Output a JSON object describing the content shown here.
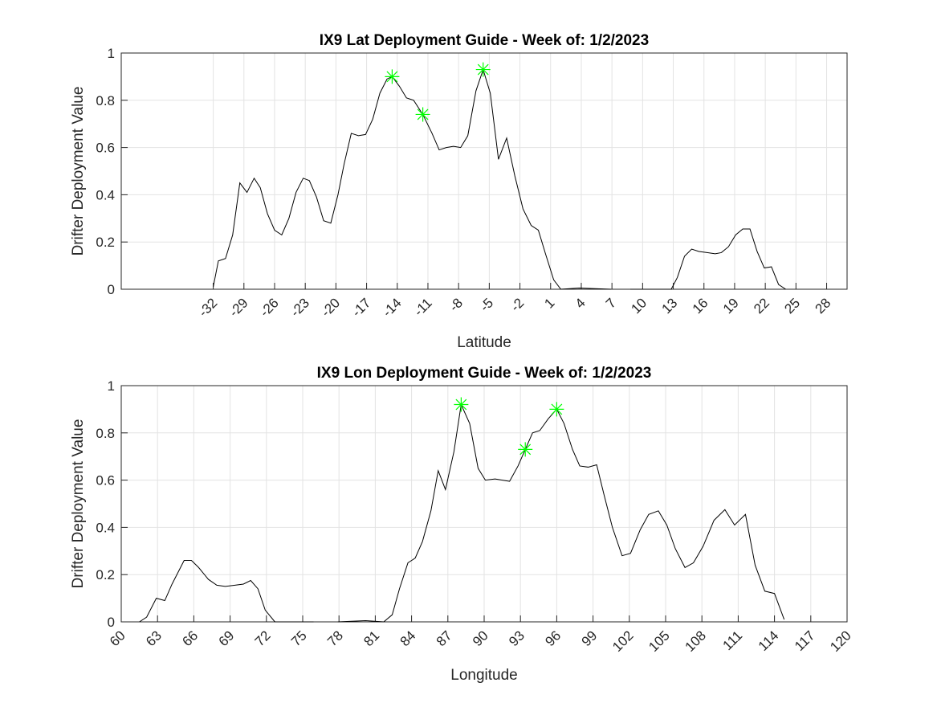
{
  "chart_data": [
    {
      "type": "line",
      "title": "IX9 Lat Deployment Guide - Week of: 1/2/2023",
      "xlabel": "Latitude",
      "ylabel": "Drifter Deployment Value",
      "xlim": [
        -41,
        30
      ],
      "xticks": [
        -32,
        -29,
        -26,
        -23,
        -20,
        -17,
        -14,
        -11,
        -8,
        -5,
        -2,
        1,
        4,
        7,
        10,
        13,
        16,
        19,
        22,
        25,
        28
      ],
      "ylim": [
        0,
        1
      ],
      "yticks": [
        0,
        0.2,
        0.4,
        0.6,
        0.8,
        1
      ],
      "grid": true,
      "color": "#000000",
      "x": [
        -32.0,
        -31.5,
        -30.8,
        -30.1,
        -29.4,
        -28.7,
        -28.0,
        -27.4,
        -26.7,
        -26.0,
        -25.3,
        -24.6,
        -23.9,
        -23.2,
        -22.6,
        -21.9,
        -21.2,
        -20.5,
        -19.8,
        -19.2,
        -18.5,
        -17.8,
        -17.1,
        -16.4,
        -15.7,
        -15.0,
        -14.5,
        -13.8,
        -13.1,
        -12.4,
        -11.5,
        -10.6,
        -9.9,
        -9.2,
        -8.5,
        -7.8,
        -7.1,
        -6.3,
        -5.6,
        -4.9,
        -4.1,
        -3.3,
        -2.5,
        -1.7,
        -0.9,
        -0.2,
        0.5,
        1.3,
        2.0,
        3.8,
        6.9,
        7.8,
        8.8,
        12.8,
        13.4,
        14.1,
        14.8,
        15.5,
        16.3,
        17.1,
        17.7,
        18.4,
        19.1,
        19.8,
        20.5,
        21.2,
        21.9,
        22.6,
        23.3,
        24.0
      ],
      "values": [
        0.01,
        0.12,
        0.13,
        0.23,
        0.45,
        0.41,
        0.47,
        0.43,
        0.32,
        0.25,
        0.23,
        0.3,
        0.41,
        0.47,
        0.46,
        0.39,
        0.29,
        0.28,
        0.4,
        0.53,
        0.66,
        0.65,
        0.655,
        0.72,
        0.83,
        0.89,
        0.9,
        0.86,
        0.81,
        0.8,
        0.74,
        0.66,
        0.59,
        0.6,
        0.605,
        0.6,
        0.65,
        0.84,
        0.93,
        0.83,
        0.55,
        0.64,
        0.48,
        0.34,
        0.27,
        0.25,
        0.15,
        0.04,
        0.0,
        0.005,
        0.0,
        null,
        0.0,
        0.0,
        0.05,
        0.14,
        0.17,
        0.16,
        0.155,
        0.15,
        0.155,
        0.18,
        0.23,
        0.255,
        0.255,
        0.16,
        0.09,
        0.095,
        0.02,
        0.0
      ],
      "markers": {
        "color": "#00ff00",
        "x": [
          -14.5,
          -11.5,
          -5.6
        ],
        "values": [
          0.9,
          0.74,
          0.93
        ]
      }
    },
    {
      "type": "line",
      "title": "IX9 Lon Deployment Guide - Week of: 1/2/2023",
      "xlabel": "Longitude",
      "ylabel": "Drifter Deployment Value",
      "xlim": [
        60,
        120
      ],
      "xticks": [
        60,
        63,
        66,
        69,
        72,
        75,
        78,
        81,
        84,
        87,
        90,
        93,
        96,
        99,
        102,
        105,
        108,
        111,
        114,
        117,
        120
      ],
      "ylim": [
        0,
        1
      ],
      "yticks": [
        0,
        0.2,
        0.4,
        0.6,
        0.8,
        1
      ],
      "grid": true,
      "color": "#000000",
      "x": [
        61.5,
        62.1,
        62.9,
        63.6,
        64.2,
        65.2,
        65.8,
        66.4,
        67.2,
        67.9,
        68.6,
        69.4,
        70.1,
        70.7,
        71.3,
        71.9,
        72.7,
        75.9,
        77.0,
        77.9,
        80.2,
        81.7,
        82.4,
        83.0,
        83.7,
        84.3,
        84.9,
        85.6,
        86.2,
        86.8,
        87.5,
        88.1,
        88.8,
        89.5,
        90.1,
        90.9,
        91.5,
        92.1,
        92.8,
        93.4,
        94.0,
        94.6,
        95.3,
        96.0,
        96.6,
        97.3,
        97.9,
        98.6,
        99.3,
        99.9,
        100.6,
        101.4,
        102.1,
        102.9,
        103.6,
        104.4,
        105.1,
        105.8,
        106.6,
        107.3,
        108.1,
        109.0,
        109.9,
        110.7,
        111.6,
        112.4,
        113.2,
        114.0,
        114.8
      ],
      "values": [
        0.0,
        0.02,
        0.1,
        0.09,
        0.16,
        0.26,
        0.26,
        0.23,
        0.18,
        0.155,
        0.15,
        0.155,
        0.16,
        0.175,
        0.14,
        0.05,
        0.0,
        0.0,
        null,
        0.0,
        0.005,
        0.0,
        0.03,
        0.14,
        0.25,
        0.27,
        0.34,
        0.47,
        0.64,
        0.56,
        0.72,
        0.92,
        0.84,
        0.65,
        0.6,
        0.605,
        0.6,
        0.595,
        0.66,
        0.73,
        0.8,
        0.81,
        0.86,
        0.9,
        0.84,
        0.73,
        0.66,
        0.655,
        0.665,
        0.54,
        0.4,
        0.28,
        0.29,
        0.39,
        0.455,
        0.47,
        0.41,
        0.31,
        0.23,
        0.25,
        0.32,
        0.43,
        0.475,
        0.41,
        0.455,
        0.24,
        0.13,
        0.12,
        0.01
      ],
      "markers": {
        "color": "#00ff00",
        "x": [
          88.1,
          93.4,
          96.0
        ],
        "values": [
          0.92,
          0.73,
          0.9
        ]
      }
    }
  ]
}
